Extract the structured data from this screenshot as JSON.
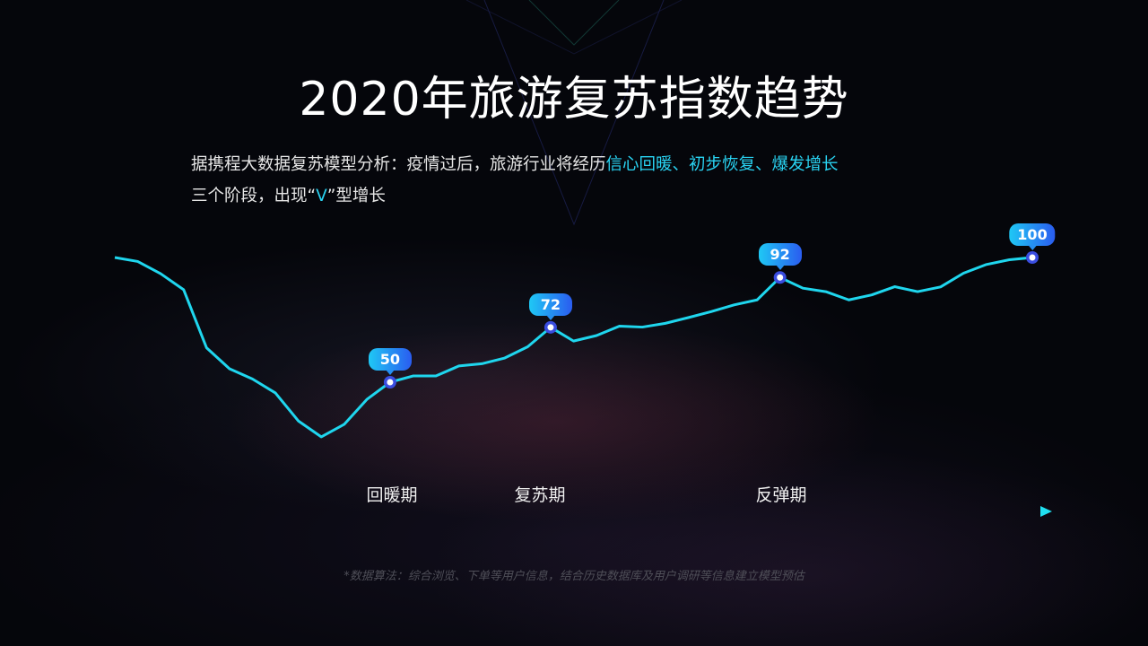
{
  "title": "2020年旅游复苏指数趋势",
  "subtitle": {
    "line1_prefix": "据携程大数据复苏模型分析：疫情过后，旅游行业将经历",
    "line1_highlight": "信心回暖、初步恢复、爆发增长",
    "line2_prefix": "三个阶段，出现“",
    "line2_highlight": "V",
    "line2_suffix": "”型增长"
  },
  "footnote": "*数据算法：综合浏览、下单等用户信息，结合历史数据库及用户调研等信息建立模型预估",
  "colors": {
    "line": "#1fd6ee",
    "bars_top": "#4a4fe0",
    "bars_bottom": "#2aa6b8",
    "highlight_text": "#29d3f2",
    "axis_start": "#3b3fe0",
    "axis_end": "#20e0f0",
    "marker_ring": "#3a4de0"
  },
  "chart_data": {
    "type": "line",
    "title": "2020年旅游复苏指数趋势",
    "xlabel": "",
    "ylabel": "",
    "grid": false,
    "legend": "none",
    "style": "line with dense vertical drop-lines, x axis drawn as arrow",
    "stages": [
      "回暖期",
      "复苏期",
      "反弹期"
    ],
    "values": [
      100,
      98.4,
      93.5,
      87.1,
      63.8,
      55.4,
      51.3,
      45.7,
      34.5,
      28.1,
      33.1,
      43.2,
      50,
      52.5,
      52.5,
      56.5,
      57.4,
      59.7,
      64.2,
      72,
      66.5,
      68.7,
      72.5,
      72.1,
      73.6,
      75.9,
      78.3,
      81.0,
      83.0,
      92,
      87.7,
      86.3,
      83.0,
      85.0,
      88.3,
      86.3,
      88.2,
      93.7,
      97.2,
      99.1,
      100
    ],
    "labeled_points": [
      {
        "index": 12,
        "label": "50"
      },
      {
        "index": 19,
        "label": "72"
      },
      {
        "index": 29,
        "label": "92"
      },
      {
        "index": 40,
        "label": "100"
      }
    ]
  }
}
